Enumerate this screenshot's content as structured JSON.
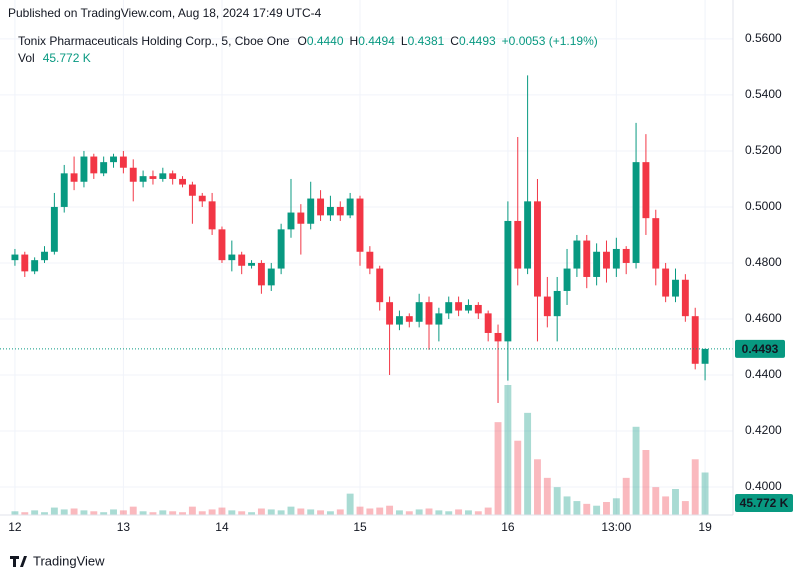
{
  "chart_data": {
    "type": "candlestick",
    "published": "Published on TradingView.com, Aug 18, 2024 17:49 UTC-4",
    "legend": {
      "title": "Tonix Pharmaceuticals Holding Corp., 5, Cboe One",
      "fields": [
        {
          "key": "O",
          "value": "0.4440"
        },
        {
          "key": "H",
          "value": "0.4494"
        },
        {
          "key": "L",
          "value": "0.4381"
        },
        {
          "key": "C",
          "value": "0.4493"
        }
      ],
      "change": "+0.0053 (+1.19%)",
      "volume_key": "Vol",
      "volume_value": "45.772 K"
    },
    "brand": "TradingView",
    "up_color": "#089981",
    "down_color": "#f23645",
    "grid": true,
    "categories": [
      "12",
      null,
      null,
      null,
      null,
      null,
      null,
      null,
      null,
      null,
      null,
      "13",
      null,
      null,
      null,
      null,
      null,
      null,
      null,
      null,
      null,
      "14",
      null,
      null,
      null,
      null,
      null,
      null,
      null,
      null,
      null,
      null,
      null,
      null,
      null,
      "15",
      null,
      null,
      null,
      null,
      null,
      null,
      null,
      null,
      null,
      null,
      null,
      null,
      null,
      null,
      "16",
      null,
      null,
      null,
      null,
      null,
      null,
      null,
      null,
      null,
      null,
      "13:00",
      null,
      null,
      null,
      null,
      null,
      null,
      null,
      null,
      "19"
    ],
    "open": [
      0.481,
      0.483,
      0.477,
      0.481,
      0.484,
      0.5,
      0.512,
      0.509,
      0.518,
      0.512,
      0.516,
      0.518,
      0.514,
      0.509,
      0.511,
      0.51,
      0.512,
      0.51,
      0.508,
      0.504,
      0.502,
      0.492,
      0.481,
      0.483,
      0.479,
      0.48,
      0.472,
      0.478,
      0.492,
      0.498,
      0.494,
      0.503,
      0.497,
      0.5,
      0.497,
      0.503,
      0.484,
      0.478,
      0.466,
      0.458,
      0.461,
      0.459,
      0.466,
      0.458,
      0.462,
      0.466,
      0.463,
      0.465,
      0.462,
      0.455,
      0.452,
      0.495,
      0.478,
      0.502,
      0.468,
      0.461,
      0.47,
      0.478,
      0.488,
      0.475,
      0.484,
      0.478,
      0.485,
      0.48,
      0.516,
      0.496,
      0.478,
      0.468,
      0.474,
      0.461,
      0.444
    ],
    "high": [
      0.485,
      0.484,
      0.482,
      0.486,
      0.505,
      0.515,
      0.518,
      0.52,
      0.519,
      0.518,
      0.519,
      0.52,
      0.517,
      0.513,
      0.513,
      0.514,
      0.513,
      0.511,
      0.509,
      0.505,
      0.505,
      0.493,
      0.488,
      0.484,
      0.481,
      0.481,
      0.48,
      0.494,
      0.51,
      0.501,
      0.509,
      0.506,
      0.504,
      0.502,
      0.505,
      0.504,
      0.486,
      0.479,
      0.468,
      0.463,
      0.462,
      0.469,
      0.468,
      0.464,
      0.468,
      0.468,
      0.467,
      0.466,
      0.463,
      0.458,
      0.502,
      0.525,
      0.547,
      0.51,
      0.475,
      0.475,
      0.485,
      0.49,
      0.49,
      0.487,
      0.488,
      0.489,
      0.486,
      0.53,
      0.526,
      0.499,
      0.48,
      0.478,
      0.476,
      0.464,
      0.4494
    ],
    "low": [
      0.479,
      0.475,
      0.476,
      0.48,
      0.483,
      0.498,
      0.506,
      0.507,
      0.51,
      0.511,
      0.514,
      0.512,
      0.502,
      0.507,
      0.508,
      0.509,
      0.508,
      0.507,
      0.494,
      0.5,
      0.49,
      0.48,
      0.477,
      0.476,
      0.478,
      0.469,
      0.47,
      0.476,
      0.489,
      0.483,
      0.492,
      0.495,
      0.495,
      0.495,
      0.496,
      0.479,
      0.476,
      0.463,
      0.44,
      0.456,
      0.457,
      0.457,
      0.449,
      0.452,
      0.46,
      0.461,
      0.462,
      0.46,
      0.452,
      0.43,
      0.438,
      0.472,
      0.476,
      0.452,
      0.457,
      0.452,
      0.465,
      0.475,
      0.471,
      0.472,
      0.473,
      0.475,
      0.476,
      0.478,
      0.49,
      0.472,
      0.466,
      0.466,
      0.459,
      0.442,
      0.4381
    ],
    "close": [
      0.483,
      0.477,
      0.481,
      0.484,
      0.5,
      0.512,
      0.509,
      0.518,
      0.512,
      0.516,
      0.518,
      0.514,
      0.509,
      0.511,
      0.51,
      0.512,
      0.51,
      0.508,
      0.504,
      0.502,
      0.492,
      0.481,
      0.483,
      0.479,
      0.48,
      0.472,
      0.478,
      0.492,
      0.498,
      0.494,
      0.503,
      0.497,
      0.5,
      0.497,
      0.503,
      0.484,
      0.478,
      0.466,
      0.458,
      0.461,
      0.459,
      0.466,
      0.458,
      0.462,
      0.466,
      0.463,
      0.465,
      0.462,
      0.455,
      0.452,
      0.495,
      0.478,
      0.502,
      0.468,
      0.461,
      0.47,
      0.478,
      0.488,
      0.475,
      0.484,
      0.478,
      0.485,
      0.48,
      0.516,
      0.496,
      0.478,
      0.468,
      0.474,
      0.461,
      0.444,
      0.4493
    ],
    "volume": {
      "values": [
        4000,
        3000,
        5000,
        3000,
        8000,
        6000,
        7000,
        5000,
        4000,
        3000,
        6000,
        5000,
        9000,
        4000,
        3000,
        5000,
        4000,
        3000,
        9000,
        4000,
        6000,
        8000,
        5000,
        4000,
        3000,
        7000,
        6000,
        5000,
        9000,
        7000,
        6000,
        5000,
        4000,
        6000,
        23000,
        9000,
        7000,
        8000,
        10000,
        5000,
        4000,
        6000,
        7000,
        5000,
        4000,
        6000,
        5000,
        4000,
        8000,
        100000,
        140000,
        80000,
        110000,
        60000,
        40000,
        30000,
        20000,
        15000,
        12000,
        10000,
        14000,
        18000,
        40000,
        95000,
        70000,
        30000,
        20000,
        28000,
        15000,
        60000,
        45772
      ],
      "last_label": "45.772 K"
    },
    "last_price": {
      "value": 0.4493,
      "label": "0.4493"
    },
    "ylim": [
      0.39,
      0.5639
    ],
    "yticks": [
      {
        "value": 0.4,
        "label": "0.4000"
      },
      {
        "value": 0.42,
        "label": "0.4200"
      },
      {
        "value": 0.44,
        "label": "0.4400"
      },
      {
        "value": 0.46,
        "label": "0.4600"
      },
      {
        "value": 0.48,
        "label": "0.4800"
      },
      {
        "value": 0.5,
        "label": "0.5000"
      },
      {
        "value": 0.52,
        "label": "0.5200"
      },
      {
        "value": 0.54,
        "label": "0.5400"
      },
      {
        "value": 0.56,
        "label": "0.5600"
      }
    ]
  }
}
